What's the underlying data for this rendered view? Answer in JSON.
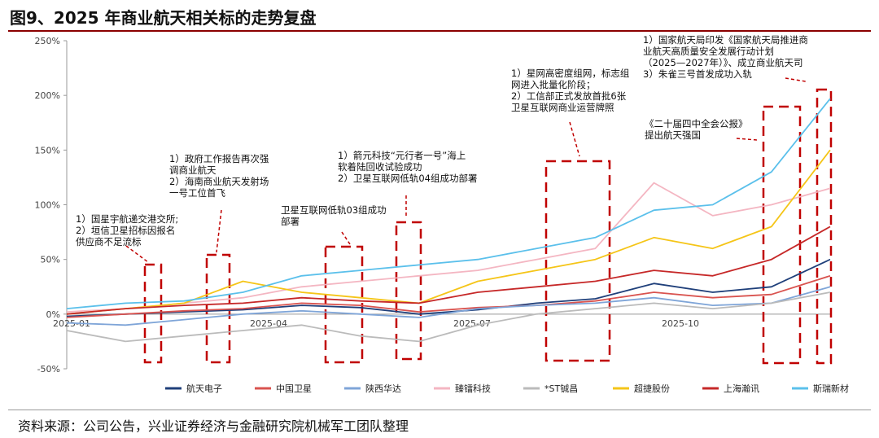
{
  "title": "图9、2025 年商业航天相关标的走势复盘",
  "source": "资料来源：公司公告，兴业证券经济与金融研究院机械军工团队整理",
  "chart_data": {
    "type": "line",
    "title": "图9、2025 年商业航天相关标的走势复盘",
    "xlabel": "",
    "ylabel": "",
    "ylim": [
      -50,
      250
    ],
    "yticks": [
      -50,
      0,
      50,
      100,
      150,
      200,
      250
    ],
    "ytick_labels": [
      "-50%",
      "0%",
      "50%",
      "100%",
      "150%",
      "200%",
      "250%"
    ],
    "xtick_labels": [
      "2025-01",
      "2025-04",
      "2025-07",
      "2025-10"
    ],
    "x": [
      0,
      4,
      8,
      12,
      16,
      20,
      24,
      28,
      32,
      36,
      40,
      44,
      48,
      52
    ],
    "grid": false,
    "legend_position": "bottom",
    "series": [
      {
        "name": "航天电子",
        "color": "#1f3f7a",
        "values": [
          -2,
          0,
          2,
          4,
          8,
          6,
          0,
          4,
          10,
          14,
          28,
          20,
          25,
          50
        ]
      },
      {
        "name": "中国卫星",
        "color": "#d9534f",
        "values": [
          -3,
          0,
          3,
          5,
          10,
          8,
          2,
          6,
          8,
          12,
          20,
          15,
          18,
          35
        ]
      },
      {
        "name": "陕西华达",
        "color": "#7fa5d8",
        "values": [
          -8,
          -10,
          -5,
          0,
          3,
          0,
          -3,
          5,
          8,
          10,
          15,
          8,
          10,
          25
        ]
      },
      {
        "name": "臻镭科技",
        "color": "#f4b6c2",
        "values": [
          2,
          5,
          10,
          15,
          25,
          30,
          35,
          40,
          50,
          60,
          120,
          90,
          100,
          115
        ]
      },
      {
        "name": "*ST铖昌",
        "color": "#bbbbbb",
        "values": [
          -15,
          -25,
          -20,
          -15,
          -10,
          -20,
          -25,
          -10,
          0,
          5,
          10,
          5,
          10,
          20
        ]
      },
      {
        "name": "超捷股份",
        "color": "#f5c518",
        "values": [
          0,
          5,
          10,
          30,
          20,
          15,
          10,
          30,
          40,
          50,
          70,
          60,
          80,
          150
        ]
      },
      {
        "name": "上海瀚讯",
        "color": "#c62828",
        "values": [
          0,
          5,
          8,
          10,
          15,
          12,
          10,
          20,
          25,
          30,
          40,
          35,
          50,
          80
        ]
      },
      {
        "name": "斯瑞新材",
        "color": "#5bc0eb",
        "values": [
          5,
          10,
          12,
          20,
          35,
          40,
          45,
          50,
          60,
          70,
          95,
          100,
          130,
          197
        ]
      }
    ],
    "annotations": [
      "1）国星宇航递交港交所;\n2）垣信卫星招标因报名\n供应商不足流标",
      "1）政府工作报告再次强\n调商业航天\n2）海南商业航天发射场\n一号工位首飞",
      "卫星互联网低轨03组成功\n部署",
      "1）箭元科技“元行者一号”海上\n软着陆回收试验成功\n2）卫星互联网低轨04组成功部署",
      "1）星网高密度组网，标志组\n网进入批量化阶段；\n2）工信部正式发放首批6张\n卫星互联网商业运营牌照",
      "《二十届四中全会公报》\n提出航天强国",
      "1）国家航天局印发《国家航天局推进商\n业航天高质量安全发展行动计划\n（2025—2027年）》、成立商业航天司\n3）朱雀三号首发成功入轨"
    ]
  }
}
